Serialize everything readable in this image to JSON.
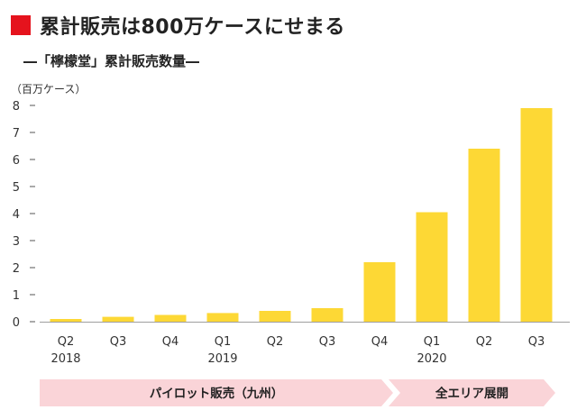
{
  "title": "累計販売は800万ケースにせまる",
  "subtitle": "―「檸檬堂」累計販売数量―",
  "colors": {
    "accent": "#e5131d",
    "bar": "#fdd835",
    "phase": "#fad4d8",
    "axis": "#555555"
  },
  "chart_data": {
    "type": "bar",
    "unit": "（百万ケース）",
    "categories": [
      "Q2",
      "Q3",
      "Q4",
      "Q1",
      "Q2",
      "Q3",
      "Q4",
      "Q1",
      "Q2",
      "Q3"
    ],
    "years": [
      {
        "label": "2018",
        "index": 0
      },
      {
        "label": "2019",
        "index": 3
      },
      {
        "label": "2020",
        "index": 7
      }
    ],
    "values": [
      0.1,
      0.18,
      0.25,
      0.32,
      0.4,
      0.5,
      2.2,
      4.05,
      6.4,
      7.9
    ],
    "ylim": [
      0,
      8
    ],
    "yticks": [
      0,
      1,
      2,
      3,
      4,
      5,
      6,
      7,
      8
    ],
    "grid": false
  },
  "phases": [
    {
      "label": "パイロット販売（九州）",
      "from": 0,
      "to": 6
    },
    {
      "label": "全エリア展開",
      "from": 7,
      "to": 9
    }
  ]
}
